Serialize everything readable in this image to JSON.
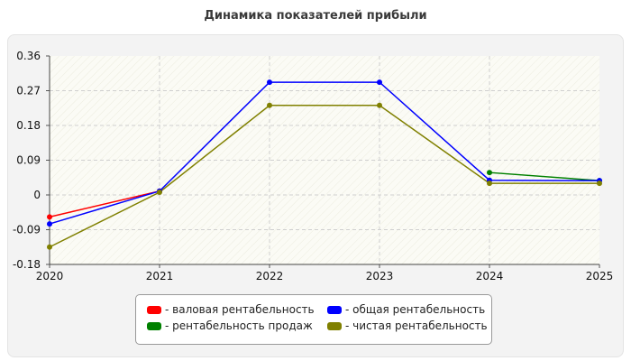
{
  "chart_data": {
    "type": "line",
    "title": "Динамика показателей прибыли",
    "x": [
      "2020",
      "2021",
      "2022",
      "2023",
      "2024",
      "2025"
    ],
    "ylim": [
      -0.18,
      0.36
    ],
    "yticks": [
      "0.36",
      "0.27",
      "0.18",
      "0.09",
      "0",
      "-0.09",
      "-0.18"
    ],
    "grid": true,
    "legend_position": "bottom-center",
    "series": [
      {
        "name": "- валовая рентабельность",
        "color": "#ff0000",
        "values": [
          -0.057,
          0.01,
          null,
          null,
          null,
          null
        ]
      },
      {
        "name": "- общая рентабельность",
        "color": "#0000ff",
        "values": [
          -0.075,
          0.01,
          0.292,
          0.292,
          0.038,
          0.037
        ]
      },
      {
        "name": "- рентабельность продаж",
        "color": "#008000",
        "values": [
          null,
          null,
          null,
          null,
          0.058,
          0.037
        ]
      },
      {
        "name": "- чистая рентабельность",
        "color": "#808000",
        "values": [
          -0.135,
          0.007,
          0.232,
          0.232,
          0.03,
          0.03
        ]
      }
    ]
  }
}
